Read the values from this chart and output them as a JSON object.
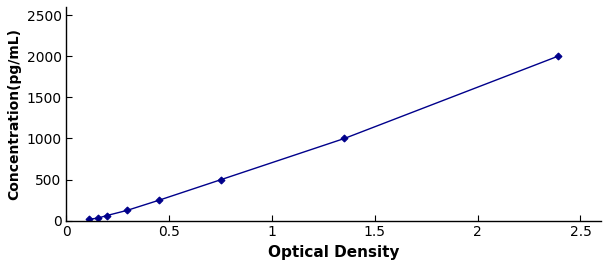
{
  "x": [
    0.108,
    0.153,
    0.197,
    0.295,
    0.452,
    0.753,
    1.352,
    2.39
  ],
  "y": [
    15.6,
    31.25,
    62.5,
    125,
    250,
    500,
    1000,
    2000
  ],
  "line_color": "#00008B",
  "marker": "D",
  "marker_size": 3.5,
  "marker_color": "#00008B",
  "line_width": 1.0,
  "xlabel": "Optical Density",
  "ylabel": "Concentration(pg/mL)",
  "xlim": [
    0.0,
    2.6
  ],
  "ylim": [
    0,
    2600
  ],
  "xticks": [
    0,
    0.5,
    1.0,
    1.5,
    2.0,
    2.5
  ],
  "xticklabels": [
    "0",
    "0.5",
    "1",
    "1.5",
    "2",
    "2.5"
  ],
  "yticks": [
    0,
    500,
    1000,
    1500,
    2000,
    2500
  ],
  "yticklabels": [
    "0",
    "500",
    "1000",
    "1500",
    "2000",
    "2500"
  ],
  "xlabel_fontsize": 11,
  "ylabel_fontsize": 10,
  "tick_fontsize": 10,
  "background_color": "#ffffff",
  "plot_bg_color": "#ffffff",
  "figure_width": 6.08,
  "figure_height": 2.67,
  "dpi": 100
}
